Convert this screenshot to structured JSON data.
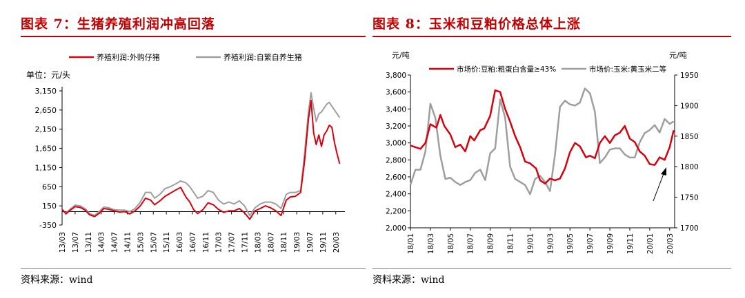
{
  "chart_data": [
    {
      "type": "line",
      "title": "图表 7：生猪养殖利润冲高回落",
      "unit_label": "单位：元/头",
      "source": "资料来源：wind",
      "y_ticks": [
        "3,150",
        "2,650",
        "2,150",
        "1,650",
        "1,150",
        "650",
        "150",
        "-350"
      ],
      "ylim": [
        -350,
        3150
      ],
      "x_ticks": [
        "13/03",
        "13/07",
        "13/11",
        "14/03",
        "14/07",
        "14/11",
        "15/03",
        "15/07",
        "15/11",
        "16/03",
        "16/07",
        "16/11",
        "17/03",
        "17/07",
        "17/11",
        "18/03",
        "18/07",
        "18/11",
        "19/03",
        "19/07",
        "19/11",
        "20/03"
      ],
      "xlim": [
        0,
        21.7
      ],
      "series": [
        {
          "name": "养殖利润:外购仔猪",
          "color": "#d9000d",
          "x": [
            0,
            0.3,
            0.6,
            1,
            1.4,
            1.8,
            2.1,
            2.5,
            2.9,
            3.2,
            3.6,
            4,
            4.4,
            4.8,
            5.2,
            5.6,
            6,
            6.4,
            6.8,
            7.1,
            7.5,
            7.9,
            8.3,
            8.7,
            9.1,
            9.5,
            9.8,
            10.1,
            10.4,
            10.8,
            11.2,
            11.6,
            12,
            12.4,
            12.8,
            13.2,
            13.6,
            14,
            14.4,
            14.8,
            15.2,
            15.6,
            16,
            16.4,
            16.8,
            17.2,
            17.5,
            17.9,
            18.3,
            18.6,
            18.9,
            19.1,
            19.3,
            19.5,
            19.7,
            19.9,
            20.1,
            20.3,
            20.5,
            20.7,
            20.9,
            21.1,
            21.3
          ],
          "y": [
            60,
            -60,
            30,
            130,
            110,
            30,
            -80,
            -130,
            -30,
            80,
            60,
            20,
            -10,
            0,
            -60,
            20,
            150,
            350,
            300,
            180,
            280,
            400,
            480,
            560,
            630,
            380,
            250,
            50,
            -50,
            50,
            230,
            180,
            60,
            -20,
            20,
            20,
            80,
            -30,
            -200,
            20,
            80,
            150,
            100,
            20,
            -100,
            300,
            380,
            400,
            500,
            1300,
            2400,
            2900,
            2050,
            1750,
            2000,
            1700,
            2000,
            2100,
            2250,
            2200,
            1800,
            1500,
            1250
          ]
        },
        {
          "name": "养殖利润:自繁自养生猪",
          "color": "#9e9e9e",
          "x": [
            0,
            0.3,
            0.6,
            1,
            1.4,
            1.8,
            2.1,
            2.5,
            2.9,
            3.2,
            3.6,
            4,
            4.4,
            4.8,
            5.2,
            5.6,
            6,
            6.4,
            6.8,
            7.1,
            7.5,
            7.9,
            8.3,
            8.7,
            9.1,
            9.5,
            9.8,
            10.1,
            10.4,
            10.8,
            11.2,
            11.6,
            12,
            12.4,
            12.8,
            13.2,
            13.6,
            14,
            14.4,
            14.8,
            15.2,
            15.6,
            16,
            16.4,
            16.8,
            17.2,
            17.5,
            17.9,
            18.3,
            18.6,
            18.9,
            19.1,
            19.3,
            19.5,
            19.7,
            19.9,
            20.1,
            20.3,
            20.5,
            20.7,
            20.9,
            21.1,
            21.3
          ],
          "y": [
            50,
            -40,
            60,
            170,
            150,
            70,
            -50,
            -100,
            20,
            120,
            100,
            50,
            40,
            40,
            0,
            80,
            250,
            500,
            500,
            350,
            450,
            600,
            650,
            720,
            800,
            750,
            650,
            500,
            350,
            400,
            550,
            500,
            300,
            200,
            250,
            200,
            280,
            150,
            -100,
            100,
            200,
            250,
            250,
            200,
            80,
            450,
            500,
            500,
            550,
            1500,
            2600,
            3100,
            2700,
            2350,
            2550,
            2600,
            2700,
            2800,
            2850,
            2750,
            2650,
            2550,
            2450
          ]
        }
      ]
    },
    {
      "type": "line",
      "title": "图表 8：玉米和豆粕价格总体上涨",
      "source": "资料来源：wind",
      "left_unit": "元/吨",
      "right_unit": "元/吨",
      "y_ticks_left": [
        "3,800",
        "3,600",
        "3,400",
        "3,200",
        "3,000",
        "2,800",
        "2,600",
        "2,400",
        "2,200",
        "2,000"
      ],
      "ylim_left": [
        2000,
        3800
      ],
      "y_ticks_right": [
        "1950",
        "1900",
        "1850",
        "1800",
        "1750",
        "1700"
      ],
      "ylim_right": [
        1700,
        1950
      ],
      "x_ticks": [
        "18/01",
        "18/03",
        "18/05",
        "18/07",
        "18/09",
        "18/11",
        "19/01",
        "19/03",
        "19/05",
        "19/07",
        "19/09",
        "19/11",
        "20/01",
        "20/03"
      ],
      "xlim": [
        0,
        26.5
      ],
      "series": [
        {
          "name": "市场价:豆粕:粗蛋白含量≥43%",
          "axis": "left",
          "color": "#d9000d",
          "x": [
            0,
            1,
            1.5,
            2,
            2.6,
            3,
            3.4,
            4,
            4.5,
            5,
            5.5,
            6,
            6.4,
            7,
            7.4,
            8,
            8.5,
            9,
            9.5,
            10,
            10.5,
            11,
            11.5,
            12,
            12.6,
            13,
            13.5,
            14,
            14.5,
            15,
            15.5,
            16,
            16.5,
            17,
            17.6,
            18,
            18.5,
            19,
            19.5,
            20,
            20.5,
            21,
            21.5,
            22,
            22.5,
            23,
            23.5,
            24,
            24.5,
            25,
            25.5,
            26,
            26.4
          ],
          "y": [
            2970,
            2930,
            3000,
            3220,
            3180,
            3330,
            3200,
            3100,
            2950,
            2980,
            2900,
            3080,
            3030,
            3150,
            3170,
            3320,
            3620,
            3600,
            3400,
            3250,
            3080,
            2950,
            2780,
            2760,
            2700,
            2560,
            2520,
            2580,
            2560,
            2580,
            2700,
            2890,
            3000,
            2960,
            2830,
            2850,
            2820,
            3000,
            3080,
            3000,
            3090,
            3120,
            3200,
            3050,
            3010,
            2900,
            2850,
            2750,
            2740,
            2830,
            2800,
            2950,
            3150
          ]
        },
        {
          "name": "市场价:玉米:黄玉米二等",
          "axis": "right",
          "color": "#9e9e9e",
          "x": [
            0,
            0.5,
            1,
            1.5,
            2,
            2.5,
            3,
            3.5,
            4,
            4.5,
            5,
            5.5,
            6,
            6.5,
            7,
            7.5,
            8,
            8.5,
            9,
            9.5,
            10,
            10.5,
            11,
            11.5,
            12,
            12.5,
            13,
            13.5,
            14,
            14.5,
            15,
            15.5,
            16,
            16.5,
            17,
            17.5,
            18,
            18.5,
            19,
            19.5,
            20,
            20.5,
            21,
            21.5,
            22,
            22.5,
            23,
            23.5,
            24,
            24.5,
            25,
            25.5,
            26,
            26.4
          ],
          "y": [
            1770,
            1795,
            1795,
            1825,
            1903,
            1880,
            1818,
            1780,
            1782,
            1775,
            1770,
            1775,
            1778,
            1790,
            1795,
            1778,
            1822,
            1830,
            1910,
            1880,
            1800,
            1780,
            1775,
            1770,
            1755,
            1780,
            1785,
            1775,
            1760,
            1820,
            1898,
            1908,
            1902,
            1900,
            1905,
            1928,
            1920,
            1890,
            1806,
            1815,
            1828,
            1830,
            1830,
            1820,
            1815,
            1815,
            1840,
            1855,
            1860,
            1868,
            1856,
            1878,
            1870,
            1874
          ]
        }
      ],
      "annotation": "arrow pointing to the rise in early 2020"
    }
  ]
}
